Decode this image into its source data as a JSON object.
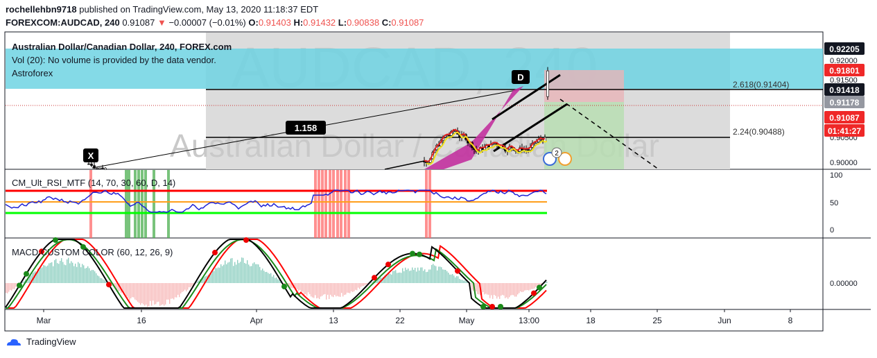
{
  "header": {
    "publisher": "rochellehbn9718",
    "published_text": "published on TradingView.com, May 13, 2020 11:18:37 EDT",
    "symbol": "FOREXCOM:AUDCAD, 240",
    "last": "0.91087",
    "arrow": "▼",
    "change": "−0.00007 (−0.01%)",
    "o_label": "O:",
    "o_value": "0.91403",
    "h_label": "H:",
    "h_value": "0.91432",
    "l_label": "L:",
    "l_value": "0.90838",
    "c_label": "C:",
    "c_value": "0.91087"
  },
  "main_panel": {
    "title": "Australian Dollar/Canadian Dollar, 240, FOREX.com",
    "vol_text": "Vol (20): No volume is provided by the data vendor.",
    "script_name": "Astroforex",
    "watermark_big": "AUDCAD, 240",
    "watermark_small": "Australian Dollar / Canadian Dollar",
    "pattern_x": "X",
    "pattern_d": "D",
    "ratio_label": "1.158",
    "fib_2618": "2.618(0.91404)",
    "fib_224": "2.24(0.90488)",
    "event_count": "2"
  },
  "price_scale": {
    "ticks": [
      "0.92000",
      "0.91500",
      "0.91000",
      "0.90500",
      "0.90000"
    ],
    "tags": [
      {
        "text": "0.92205",
        "bg": "#131722",
        "fg": "#ffffff"
      },
      {
        "text": "0.91801",
        "bg": "#ef2828",
        "fg": "#ffffff"
      },
      {
        "text": "0.91418",
        "bg": "#131722",
        "fg": "#ffffff"
      },
      {
        "text": "0.91178",
        "bg": "#9598a1",
        "fg": "#ffffff"
      },
      {
        "text": "0.91087",
        "bg": "#ef2828",
        "fg": "#ffffff"
      },
      {
        "text": "01:41:27",
        "bg": "#ef2828",
        "fg": "#ffffff"
      }
    ]
  },
  "rsi_panel": {
    "title": "CM_Ult_RSI_MTF (14, 70, 30, 60, D, 14)",
    "ticks": [
      "100",
      "50",
      "0"
    ]
  },
  "macd_panel": {
    "title": "MACD CUSTOM COLOR (60, 12, 26, 9)",
    "ticks": [
      "0.00000"
    ]
  },
  "time_axis": [
    "Mar",
    "16",
    "Apr",
    "13",
    "22",
    "May",
    "13:00",
    "18",
    "25",
    "Jun",
    "8"
  ],
  "footer": {
    "brand": "TradingView"
  },
  "colors": {
    "resistance_band": "#6fd3e3",
    "bearish_bg": "#e8b4b8",
    "bullish_bg": "#b7dfb0",
    "pattern_fill": "#c2319e",
    "rsi_line": "#1e22d6",
    "rsi_upper": "#ff0000",
    "rsi_lower": "#00ff00",
    "rsi_mid": "#ff9e1b",
    "macd_line": "#000000",
    "signal_line": "#ff0000"
  },
  "chart_data": {
    "type": "line",
    "title": "AUDCAD, 240",
    "ylim": [
      0.8985,
      0.9235
    ],
    "price_series_approx": [
      {
        "date": "Mar 10",
        "close": 0.899
      },
      {
        "date": "Apr 28",
        "close": 0.901
      },
      {
        "date": "May 1",
        "close": 0.911
      },
      {
        "date": "May 4",
        "close": 0.906
      },
      {
        "date": "May 7",
        "close": 0.908
      },
      {
        "date": "May 11",
        "close": 0.911
      },
      {
        "date": "May 13",
        "close": 0.91087
      }
    ],
    "levels": [
      {
        "name": "2.618",
        "value": 0.91404
      },
      {
        "name": "2.24",
        "value": 0.90488
      }
    ],
    "rsi": {
      "upper": 70,
      "lower": 30,
      "mid": 50
    }
  }
}
